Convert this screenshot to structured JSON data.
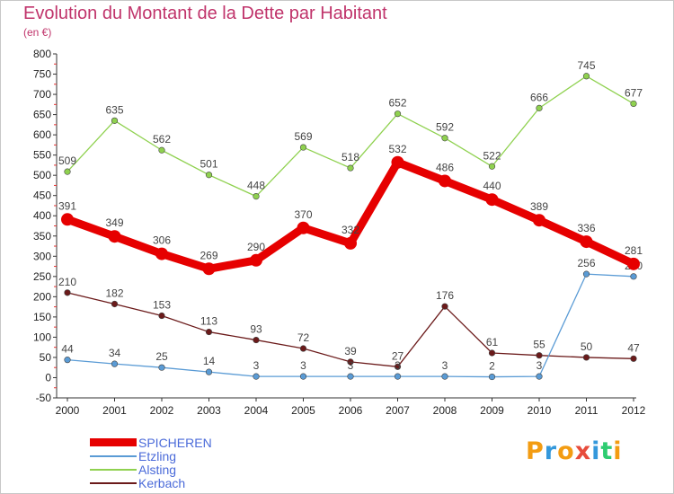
{
  "chart_data": {
    "type": "line",
    "title": "Evolution du Montant de la Dette par Habitant",
    "subtitle": "(en €)",
    "x": [
      "2000",
      "2001",
      "2002",
      "2003",
      "2004",
      "2005",
      "2006",
      "2007",
      "2008",
      "2009",
      "2010",
      "2011",
      "2012"
    ],
    "ylim": [
      -50,
      800
    ],
    "yticks": [
      -50,
      0,
      50,
      100,
      150,
      200,
      250,
      300,
      350,
      400,
      450,
      500,
      550,
      600,
      650,
      700,
      750,
      800
    ],
    "grid": false,
    "legend_position": "bottom-left",
    "series": [
      {
        "name": "Alsting",
        "color": "#8fd14f",
        "values": [
          509,
          635,
          562,
          501,
          448,
          569,
          518,
          652,
          592,
          522,
          666,
          745,
          677
        ]
      },
      {
        "name": "Kerbach",
        "color": "#6b1a1a",
        "values": [
          210,
          182,
          153,
          113,
          93,
          72,
          39,
          27,
          176,
          61,
          55,
          50,
          47
        ]
      },
      {
        "name": "Etzling",
        "color": "#5a9bd5",
        "values": [
          44,
          34,
          25,
          14,
          3,
          3,
          3,
          3,
          3,
          2,
          3,
          256,
          250
        ]
      },
      {
        "name": "SPICHEREN",
        "color": "#e60000",
        "values": [
          391,
          349,
          306,
          269,
          290,
          370,
          332,
          532,
          486,
          440,
          389,
          336,
          281
        ]
      }
    ]
  },
  "legend": {
    "items": [
      {
        "label": "SPICHEREN",
        "color": "#e60000"
      },
      {
        "label": "Etzling",
        "color": "#5a9bd5"
      },
      {
        "label": "Alsting",
        "color": "#8fd14f"
      },
      {
        "label": "Kerbach",
        "color": "#6b1a1a"
      }
    ]
  },
  "logo": {
    "letters": [
      "P",
      "r",
      "o",
      "x",
      "i",
      "t",
      "i"
    ],
    "colors": [
      "#f39c12",
      "#3498db",
      "#f39c12",
      "#e74c3c",
      "#3498db",
      "#2ecc71",
      "#f39c12"
    ]
  }
}
